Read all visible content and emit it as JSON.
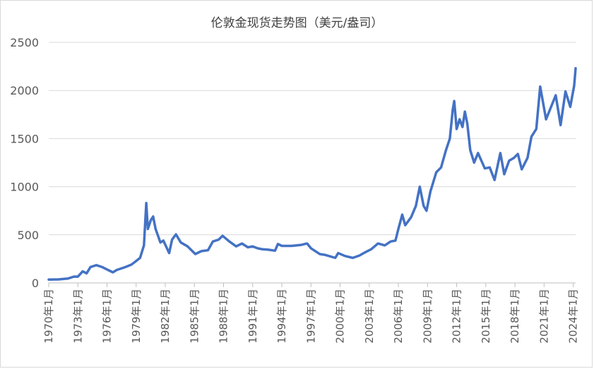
{
  "chart_data": {
    "type": "line",
    "title": "伦敦金现货走势图（美元/盎司）",
    "xlabel": "",
    "ylabel": "",
    "ylim": [
      0,
      2500
    ],
    "yticks": [
      "0",
      "500",
      "1000",
      "1500",
      "2000",
      "2500"
    ],
    "x_range": [
      1970,
      2024.25
    ],
    "xticks": [
      {
        "label": "1970年1月",
        "year": 1970
      },
      {
        "label": "1973年1月",
        "year": 1973
      },
      {
        "label": "1976年1月",
        "year": 1976
      },
      {
        "label": "1979年1月",
        "year": 1979
      },
      {
        "label": "1982年1月",
        "year": 1982
      },
      {
        "label": "1985年1月",
        "year": 1985
      },
      {
        "label": "1988年1月",
        "year": 1988
      },
      {
        "label": "1991年1月",
        "year": 1991
      },
      {
        "label": "1994年1月",
        "year": 1994
      },
      {
        "label": "1997年1月",
        "year": 1997
      },
      {
        "label": "2000年1月",
        "year": 2000
      },
      {
        "label": "2003年1月",
        "year": 2003
      },
      {
        "label": "2006年1月",
        "year": 2006
      },
      {
        "label": "2009年1月",
        "year": 2009
      },
      {
        "label": "2012年1月",
        "year": 2012
      },
      {
        "label": "2015年1月",
        "year": 2015
      },
      {
        "label": "2018年1月",
        "year": 2018
      },
      {
        "label": "2021年1月",
        "year": 2021
      },
      {
        "label": "2024年1月",
        "year": 2024
      }
    ],
    "grid": true,
    "line_color": "#4472c4",
    "points": [
      [
        1970.0,
        35
      ],
      [
        1971.0,
        37
      ],
      [
        1972.0,
        46
      ],
      [
        1972.6,
        66
      ],
      [
        1973.0,
        65
      ],
      [
        1973.5,
        120
      ],
      [
        1973.9,
        100
      ],
      [
        1974.3,
        165
      ],
      [
        1974.9,
        185
      ],
      [
        1975.5,
        165
      ],
      [
        1976.0,
        140
      ],
      [
        1976.6,
        110
      ],
      [
        1977.0,
        135
      ],
      [
        1977.9,
        165
      ],
      [
        1978.5,
        190
      ],
      [
        1978.9,
        220
      ],
      [
        1979.4,
        260
      ],
      [
        1979.8,
        390
      ],
      [
        1980.04,
        830
      ],
      [
        1980.2,
        560
      ],
      [
        1980.5,
        650
      ],
      [
        1980.75,
        690
      ],
      [
        1981.0,
        560
      ],
      [
        1981.5,
        420
      ],
      [
        1981.8,
        440
      ],
      [
        1982.4,
        310
      ],
      [
        1982.7,
        450
      ],
      [
        1983.1,
        505
      ],
      [
        1983.6,
        420
      ],
      [
        1984.3,
        380
      ],
      [
        1985.1,
        300
      ],
      [
        1985.7,
        330
      ],
      [
        1986.4,
        340
      ],
      [
        1986.9,
        430
      ],
      [
        1987.5,
        450
      ],
      [
        1987.9,
        490
      ],
      [
        1988.6,
        430
      ],
      [
        1989.3,
        380
      ],
      [
        1989.9,
        410
      ],
      [
        1990.5,
        370
      ],
      [
        1991.0,
        380
      ],
      [
        1991.5,
        360
      ],
      [
        1992.0,
        350
      ],
      [
        1992.6,
        345
      ],
      [
        1993.3,
        335
      ],
      [
        1993.6,
        405
      ],
      [
        1994.0,
        385
      ],
      [
        1995.0,
        385
      ],
      [
        1996.0,
        395
      ],
      [
        1996.6,
        410
      ],
      [
        1997.0,
        360
      ],
      [
        1997.9,
        300
      ],
      [
        1998.5,
        290
      ],
      [
        1999.5,
        260
      ],
      [
        1999.8,
        310
      ],
      [
        2000.5,
        280
      ],
      [
        2001.3,
        260
      ],
      [
        2002.0,
        285
      ],
      [
        2002.6,
        320
      ],
      [
        2003.2,
        350
      ],
      [
        2003.9,
        410
      ],
      [
        2004.6,
        390
      ],
      [
        2005.2,
        430
      ],
      [
        2005.7,
        440
      ],
      [
        2006.0,
        560
      ],
      [
        2006.4,
        710
      ],
      [
        2006.7,
        600
      ],
      [
        2007.3,
        680
      ],
      [
        2007.8,
        800
      ],
      [
        2008.2,
        1000
      ],
      [
        2008.6,
        800
      ],
      [
        2008.9,
        750
      ],
      [
        2009.3,
        950
      ],
      [
        2009.9,
        1150
      ],
      [
        2010.4,
        1200
      ],
      [
        2010.9,
        1380
      ],
      [
        2011.3,
        1500
      ],
      [
        2011.6,
        1800
      ],
      [
        2011.75,
        1890
      ],
      [
        2012.0,
        1600
      ],
      [
        2012.3,
        1700
      ],
      [
        2012.6,
        1620
      ],
      [
        2012.85,
        1780
      ],
      [
        2013.1,
        1650
      ],
      [
        2013.4,
        1380
      ],
      [
        2013.8,
        1250
      ],
      [
        2014.2,
        1350
      ],
      [
        2014.9,
        1190
      ],
      [
        2015.4,
        1200
      ],
      [
        2015.9,
        1070
      ],
      [
        2016.5,
        1350
      ],
      [
        2016.9,
        1130
      ],
      [
        2017.4,
        1270
      ],
      [
        2017.9,
        1300
      ],
      [
        2018.3,
        1340
      ],
      [
        2018.7,
        1180
      ],
      [
        2019.3,
        1300
      ],
      [
        2019.7,
        1520
      ],
      [
        2020.2,
        1600
      ],
      [
        2020.6,
        2040
      ],
      [
        2021.2,
        1700
      ],
      [
        2021.6,
        1800
      ],
      [
        2022.2,
        1950
      ],
      [
        2022.7,
        1640
      ],
      [
        2023.2,
        1990
      ],
      [
        2023.7,
        1830
      ],
      [
        2024.1,
        2050
      ],
      [
        2024.25,
        2230
      ]
    ]
  }
}
